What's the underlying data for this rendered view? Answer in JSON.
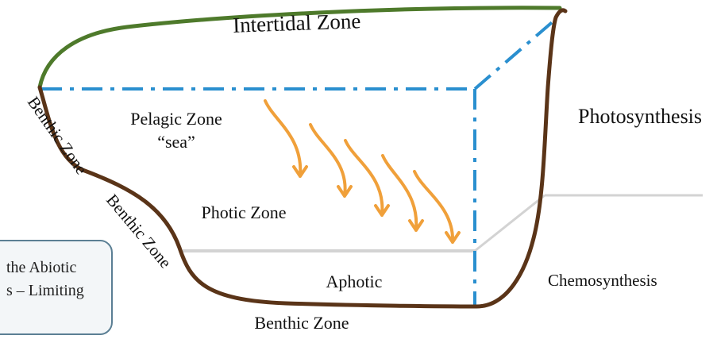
{
  "colors": {
    "surface_line": "#4e7a2b",
    "seafloor_line": "#5a3418",
    "boundary_dashes": "#2a8fcf",
    "light_rays": "#f0a03a",
    "zone_divider": "#d3d3d3",
    "callout_border": "#5b7f94",
    "callout_fill": "#f3f6f8"
  },
  "labels": {
    "intertidal_zone": "Intertidal Zone",
    "pelagic_zone": "Pelagic Zone",
    "pelagic_sea": "“sea”",
    "photic_zone": "Photic Zone",
    "aphotic": "Aphotic",
    "benthic_left_1": "Benthic Zone",
    "benthic_left_2": "Benthic Zone",
    "benthic_bottom": "Benthic Zone",
    "photosynthesis": "Photosynthesis",
    "chemosynthesis": "Chemosynthesis"
  },
  "callout": {
    "line1": "the Abiotic",
    "line2": "s – Limiting"
  }
}
